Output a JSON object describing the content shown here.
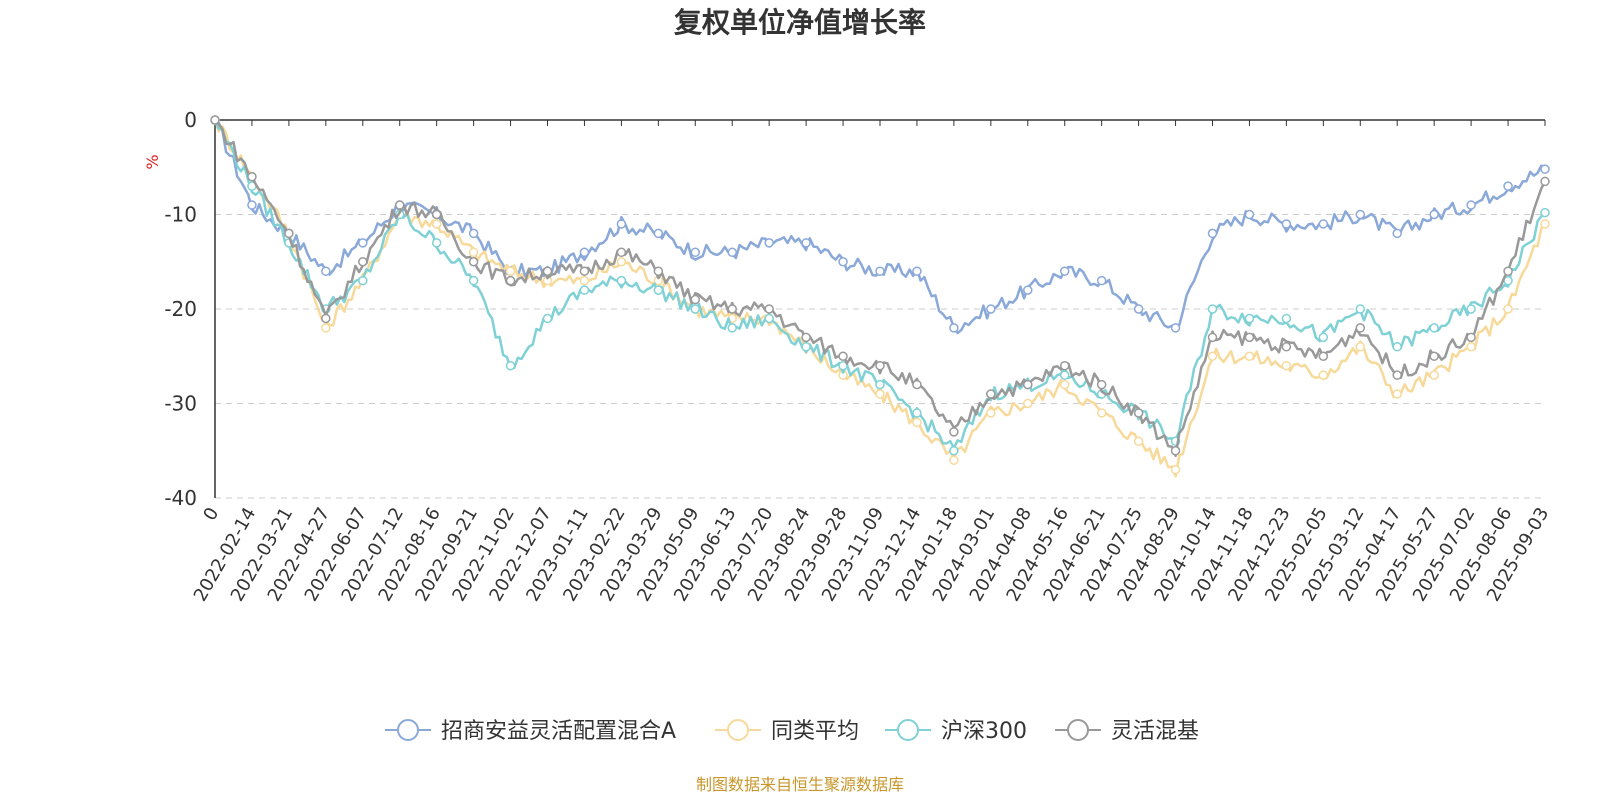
{
  "chart_data": {
    "type": "line",
    "title": "复权单位净值增长率",
    "ylabel": "%",
    "ylim": [
      -40,
      0
    ],
    "yticks": [
      0,
      -10,
      -20,
      -30,
      -40
    ],
    "grid": true,
    "legend_position": "bottom",
    "source": "制图数据来自恒生聚源数据库",
    "x_labels": [
      "0",
      "2022-02-14",
      "2022-03-21",
      "2022-04-27",
      "2022-06-07",
      "2022-07-12",
      "2022-08-16",
      "2022-09-21",
      "2022-11-02",
      "2022-12-07",
      "2023-01-11",
      "2023-02-22",
      "2023-03-29",
      "2023-05-09",
      "2023-06-13",
      "2023-07-20",
      "2023-08-24",
      "2023-09-28",
      "2023-11-09",
      "2023-12-14",
      "2024-01-18",
      "2024-03-01",
      "2024-04-08",
      "2024-05-16",
      "2024-06-21",
      "2024-07-25",
      "2024-08-29",
      "2024-10-14",
      "2024-11-18",
      "2024-12-23",
      "2025-02-05",
      "2025-03-12",
      "2025-04-17",
      "2025-05-27",
      "2025-07-02",
      "2025-08-06",
      "2025-09-03"
    ],
    "series": [
      {
        "name": "招商安益灵活配置混合A",
        "color": "#8aa8d8",
        "values": [
          0,
          -9,
          -12,
          -16,
          -13,
          -9,
          -10,
          -12,
          -16,
          -16,
          -14,
          -11,
          -12,
          -14,
          -14,
          -13,
          -13,
          -15,
          -16,
          -16,
          -22,
          -20,
          -18,
          -16,
          -17,
          -20,
          -22,
          -12,
          -10,
          -11,
          -11,
          -10,
          -12,
          -10,
          -9,
          -7,
          -5.2
        ]
      },
      {
        "name": "同类平均",
        "color": "#f7d99a",
        "values": [
          0,
          -6,
          -12,
          -22,
          -17,
          -10,
          -11,
          -14,
          -16,
          -17,
          -17,
          -15,
          -17,
          -20,
          -21,
          -21,
          -24,
          -27,
          -29,
          -32,
          -36,
          -31,
          -30,
          -28,
          -31,
          -34,
          -37,
          -25,
          -25,
          -26,
          -27,
          -24,
          -29,
          -27,
          -24,
          -20,
          -11
        ]
      },
      {
        "name": "沪深300",
        "color": "#7fd1d6",
        "values": [
          0,
          -7,
          -13,
          -20,
          -17,
          -10,
          -13,
          -17,
          -26,
          -21,
          -18,
          -17,
          -18,
          -20,
          -22,
          -21,
          -24,
          -26,
          -28,
          -31,
          -35,
          -29,
          -28,
          -27,
          -29,
          -31,
          -34,
          -20,
          -21,
          -21,
          -23,
          -20,
          -24,
          -22,
          -20,
          -17,
          -9.8
        ]
      },
      {
        "name": "灵活混基",
        "color": "#999999",
        "values": [
          0,
          -6,
          -12,
          -21,
          -15,
          -9,
          -10,
          -15,
          -17,
          -16,
          -16,
          -14,
          -16,
          -19,
          -20,
          -20,
          -23,
          -25,
          -26,
          -28,
          -33,
          -29,
          -28,
          -26,
          -28,
          -31,
          -35,
          -23,
          -23,
          -24,
          -25,
          -22,
          -27,
          -25,
          -23,
          -16,
          -6.5
        ]
      }
    ]
  }
}
